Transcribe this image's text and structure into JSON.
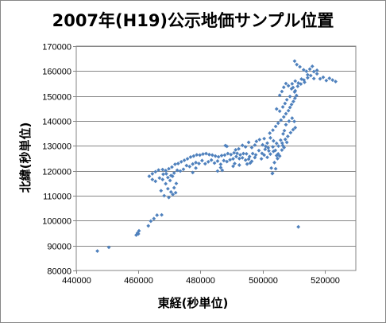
{
  "chart_data": {
    "type": "scatter",
    "title": "2007年(H19)公示地価サンプル位置",
    "xlabel": "東経(秒単位)",
    "ylabel": "北緯(秒単位)",
    "xlim": [
      440000,
      530000
    ],
    "ylim": [
      80000,
      170000
    ],
    "x_ticks": [
      440000,
      460000,
      480000,
      500000,
      520000
    ],
    "y_ticks": [
      80000,
      90000,
      100000,
      110000,
      120000,
      130000,
      140000,
      150000,
      160000,
      170000
    ],
    "x_tick_labels": [
      "440000",
      "460000",
      "480000",
      "500000",
      "520000"
    ],
    "y_tick_labels": [
      "80000",
      "90000",
      "100000",
      "110000",
      "120000",
      "130000",
      "140000",
      "150000",
      "160000",
      "170000"
    ],
    "grid": "horizontal",
    "legend": "none",
    "marker_color": "#4F81BD",
    "series": [
      {
        "points": [
          [
            446800,
            87800
          ],
          [
            450500,
            89300
          ],
          [
            459300,
            94200
          ],
          [
            459700,
            95000
          ],
          [
            460200,
            95900
          ],
          [
            460000,
            94700
          ],
          [
            464000,
            99800
          ],
          [
            465000,
            100800
          ],
          [
            466000,
            102200
          ],
          [
            467500,
            102300
          ],
          [
            463200,
            97900
          ],
          [
            463500,
            117800
          ],
          [
            464500,
            118800
          ],
          [
            465500,
            119600
          ],
          [
            466500,
            120300
          ],
          [
            467800,
            120500
          ],
          [
            468800,
            120100
          ],
          [
            469800,
            120800
          ],
          [
            470800,
            121500
          ],
          [
            471800,
            122600
          ],
          [
            472800,
            122900
          ],
          [
            473800,
            123600
          ],
          [
            474800,
            124200
          ],
          [
            475800,
            124800
          ],
          [
            476800,
            125500
          ],
          [
            477800,
            125900
          ],
          [
            478800,
            126400
          ],
          [
            479800,
            126300
          ],
          [
            480800,
            126700
          ],
          [
            481800,
            126900
          ],
          [
            482800,
            126500
          ],
          [
            483800,
            126300
          ],
          [
            484800,
            125900
          ],
          [
            485800,
            125600
          ],
          [
            486800,
            126100
          ],
          [
            487800,
            126300
          ],
          [
            488800,
            126900
          ],
          [
            489800,
            126500
          ],
          [
            490800,
            127200
          ],
          [
            491800,
            127000
          ],
          [
            492800,
            126400
          ],
          [
            493800,
            126900
          ],
          [
            494800,
            126800
          ],
          [
            495800,
            125700
          ],
          [
            496800,
            126900
          ],
          [
            497800,
            126400
          ],
          [
            498800,
            128100
          ],
          [
            499800,
            127000
          ],
          [
            500800,
            128600
          ],
          [
            501800,
            129200
          ],
          [
            464500,
            116500
          ],
          [
            465500,
            115800
          ],
          [
            466800,
            117100
          ],
          [
            468000,
            118600
          ],
          [
            469500,
            117300
          ],
          [
            470500,
            118100
          ],
          [
            471500,
            119100
          ],
          [
            472500,
            120200
          ],
          [
            473500,
            119900
          ],
          [
            474500,
            120600
          ],
          [
            475500,
            122100
          ],
          [
            476500,
            121700
          ],
          [
            477500,
            122700
          ],
          [
            478500,
            123300
          ],
          [
            479500,
            122900
          ],
          [
            480500,
            124100
          ],
          [
            481500,
            122800
          ],
          [
            482500,
            123600
          ],
          [
            483500,
            124300
          ],
          [
            484500,
            123100
          ],
          [
            485500,
            123900
          ],
          [
            486500,
            122600
          ],
          [
            487500,
            124100
          ],
          [
            488500,
            123700
          ],
          [
            489500,
            124400
          ],
          [
            490500,
            124800
          ],
          [
            491500,
            125700
          ],
          [
            492500,
            124900
          ],
          [
            493500,
            125200
          ],
          [
            494500,
            124300
          ],
          [
            495500,
            124700
          ],
          [
            496500,
            123800
          ],
          [
            497500,
            125300
          ],
          [
            467800,
            116500
          ],
          [
            468800,
            114800
          ],
          [
            469500,
            112800
          ],
          [
            470500,
            111500
          ],
          [
            471500,
            113200
          ],
          [
            472200,
            114900
          ],
          [
            470200,
            116100
          ],
          [
            471000,
            117800
          ],
          [
            468300,
            110000
          ],
          [
            469800,
            109300
          ],
          [
            471100,
            110500
          ],
          [
            472000,
            111200
          ],
          [
            467300,
            112000
          ],
          [
            469000,
            118800
          ],
          [
            477500,
            119300
          ],
          [
            478500,
            121100
          ],
          [
            485500,
            119900
          ],
          [
            486500,
            121300
          ],
          [
            487000,
            120200
          ],
          [
            490500,
            121800
          ],
          [
            491000,
            122900
          ],
          [
            492500,
            122300
          ],
          [
            495000,
            122700
          ],
          [
            496000,
            123100
          ],
          [
            488000,
            130100
          ],
          [
            488500,
            129800
          ],
          [
            491300,
            128400
          ],
          [
            492300,
            128800
          ],
          [
            493500,
            130200
          ],
          [
            494500,
            129600
          ],
          [
            495500,
            131400
          ],
          [
            496500,
            129300
          ],
          [
            497500,
            130300
          ],
          [
            498000,
            131800
          ],
          [
            499000,
            132500
          ],
          [
            500000,
            130400
          ],
          [
            500500,
            132900
          ],
          [
            501500,
            131100
          ],
          [
            502500,
            133200
          ],
          [
            503500,
            132000
          ],
          [
            504500,
            131000
          ],
          [
            499600,
            124800
          ],
          [
            500500,
            126300
          ],
          [
            501500,
            125400
          ],
          [
            502500,
            126700
          ],
          [
            503500,
            127800
          ],
          [
            504500,
            126100
          ],
          [
            505500,
            125900
          ],
          [
            503800,
            123300
          ],
          [
            504200,
            120800
          ],
          [
            503100,
            118900
          ],
          [
            502800,
            121100
          ],
          [
            503300,
            129600
          ],
          [
            504100,
            128200
          ],
          [
            505100,
            129900
          ],
          [
            506200,
            128300
          ],
          [
            505800,
            132300
          ],
          [
            506600,
            134800
          ],
          [
            507000,
            136100
          ],
          [
            506500,
            130100
          ],
          [
            505000,
            126800
          ],
          [
            504800,
            124900
          ],
          [
            502000,
            128000
          ],
          [
            501000,
            129800
          ],
          [
            502300,
            135100
          ],
          [
            503300,
            136300
          ],
          [
            504200,
            137800
          ],
          [
            505000,
            139100
          ],
          [
            505900,
            140300
          ],
          [
            506800,
            141600
          ],
          [
            507500,
            142900
          ],
          [
            508300,
            144100
          ],
          [
            508800,
            145400
          ],
          [
            509300,
            146600
          ],
          [
            509900,
            147800
          ],
          [
            510400,
            149100
          ],
          [
            510900,
            150200
          ],
          [
            510500,
            152100
          ],
          [
            509800,
            153400
          ],
          [
            509500,
            154900
          ],
          [
            510500,
            156000
          ],
          [
            511500,
            155200
          ],
          [
            512500,
            156800
          ],
          [
            513500,
            155500
          ],
          [
            514500,
            157300
          ],
          [
            515500,
            158200
          ],
          [
            516500,
            157000
          ],
          [
            517500,
            158900
          ],
          [
            518500,
            156900
          ],
          [
            519500,
            157500
          ],
          [
            520500,
            156200
          ],
          [
            521500,
            157100
          ],
          [
            522500,
            156400
          ],
          [
            523500,
            155800
          ],
          [
            504500,
            144800
          ],
          [
            505500,
            143900
          ],
          [
            506500,
            145600
          ],
          [
            507200,
            147000
          ],
          [
            507800,
            148500
          ],
          [
            508800,
            149800
          ],
          [
            507500,
            138500
          ],
          [
            508500,
            139900
          ],
          [
            509500,
            141100
          ],
          [
            510200,
            139800
          ],
          [
            510500,
            137300
          ],
          [
            509800,
            136500
          ],
          [
            509000,
            135300
          ],
          [
            508100,
            133800
          ],
          [
            507300,
            132600
          ],
          [
            506300,
            131100
          ],
          [
            506900,
            129300
          ],
          [
            507800,
            131400
          ],
          [
            505500,
            150300
          ],
          [
            506200,
            151800
          ],
          [
            506800,
            153500
          ],
          [
            507500,
            155000
          ],
          [
            508300,
            154100
          ],
          [
            509300,
            152900
          ],
          [
            510300,
            151600
          ],
          [
            511300,
            153900
          ],
          [
            512300,
            154800
          ],
          [
            513300,
            156400
          ],
          [
            514500,
            158500
          ],
          [
            516500,
            159800
          ],
          [
            517500,
            160300
          ],
          [
            510300,
            164000
          ],
          [
            511000,
            162600
          ],
          [
            512000,
            161700
          ],
          [
            513200,
            160500
          ],
          [
            514100,
            159900
          ],
          [
            515200,
            160800
          ],
          [
            516000,
            161900
          ],
          [
            511500,
            97500
          ],
          [
            503200,
            119000
          ]
        ]
      }
    ]
  }
}
